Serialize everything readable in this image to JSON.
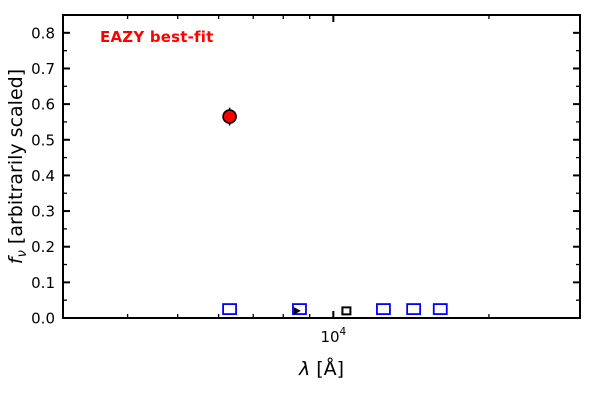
{
  "chart_data": {
    "type": "scatter",
    "title": "",
    "annotation": {
      "text": "EAZY best-fit",
      "color": "#ff0000"
    },
    "xlabel": {
      "symbol": "λ",
      "rest": " [Å]"
    },
    "ylabel": {
      "symbol": "f",
      "subscript": "ν",
      "rest": " [arbitrarily scaled]"
    },
    "x_scale": "log",
    "xlim": [
      3000,
      30000
    ],
    "ylim": [
      0,
      0.85
    ],
    "grid": false,
    "legend": "none",
    "frame_color": "#000000",
    "x_major_ticks": [
      {
        "value": 10000,
        "label_base": "10",
        "label_exp": "4"
      }
    ],
    "x_minor_ticks": [
      4000,
      5000,
      6000,
      7000,
      8000,
      9000,
      20000
    ],
    "y_major_ticks": [
      0.0,
      0.1,
      0.2,
      0.3,
      0.4,
      0.5,
      0.6,
      0.7,
      0.8
    ],
    "y_tick_labels": [
      "0.0",
      "0.1",
      "0.2",
      "0.3",
      "0.4",
      "0.5",
      "0.6",
      "0.7",
      "0.8"
    ],
    "y_minor_ticks": [
      0.05,
      0.15,
      0.25,
      0.35,
      0.45,
      0.55,
      0.65,
      0.75
    ],
    "series": [
      {
        "name": "observed photometry point",
        "marker": "circle",
        "marker_color": "#ff0000",
        "edge_color": "#000000",
        "points": [
          {
            "x": 6300,
            "y": 0.565,
            "yerr": 0.025
          }
        ]
      },
      {
        "name": "template synthetic photometry",
        "marker": "open-square",
        "marker_color": "#0000ff",
        "edge_color": "#0000ff",
        "points": [
          {
            "x": 6300,
            "y": 0.025
          },
          {
            "x": 8600,
            "y": 0.025
          },
          {
            "x": 12500,
            "y": 0.025
          },
          {
            "x": 14300,
            "y": 0.025
          },
          {
            "x": 16100,
            "y": 0.025
          }
        ]
      },
      {
        "name": "black arrow marker",
        "marker": "triangle-right",
        "marker_color": "#000000",
        "edge_color": "#000000",
        "points": [
          {
            "x": 8500,
            "y": 0.02
          }
        ]
      },
      {
        "name": "black square marker",
        "marker": "open-square-small",
        "marker_color": "#000000",
        "edge_color": "#000000",
        "points": [
          {
            "x": 10600,
            "y": 0.02
          }
        ]
      }
    ]
  }
}
